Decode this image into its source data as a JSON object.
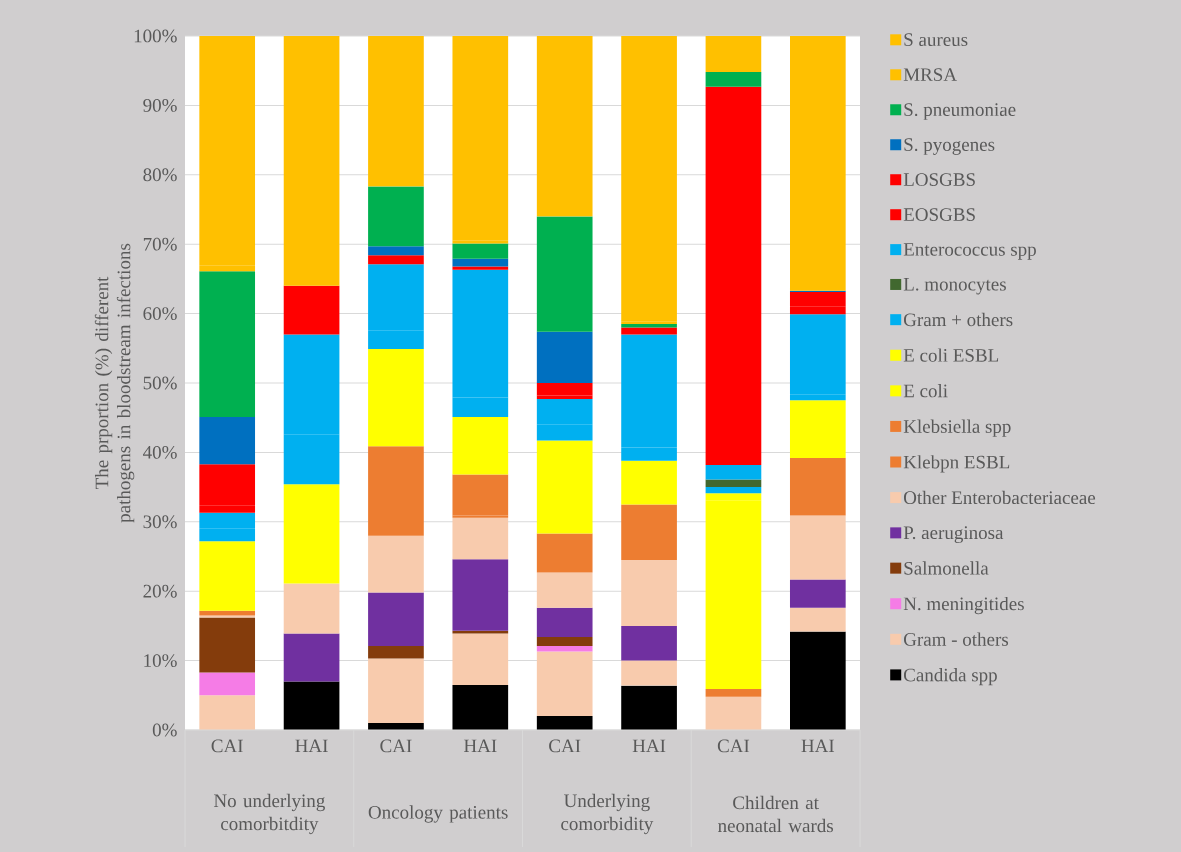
{
  "chart_data": {
    "type": "bar",
    "stacked": true,
    "ylabel": "The prportion (%) different pathogens in bloodstream infections",
    "categories": [
      "CAI",
      "HAI",
      "CAI",
      "HAI",
      "CAI",
      "HAI",
      "CAI",
      "HAI"
    ],
    "annotations": [
      "No underlying comorbitdity",
      "Oncology patients",
      "Underlying comorbidity",
      "Children at neonatal wards"
    ],
    "ylim": [
      0,
      100
    ],
    "yticks": [
      {
        "value": 0,
        "label": "0%"
      },
      {
        "value": 10,
        "label": "10%"
      },
      {
        "value": 20,
        "label": "20%"
      },
      {
        "value": 30,
        "label": "30%"
      },
      {
        "value": 40,
        "label": "40%"
      },
      {
        "value": 50,
        "label": "50%"
      },
      {
        "value": 60,
        "label": "60%"
      },
      {
        "value": 70,
        "label": "70%"
      },
      {
        "value": 80,
        "label": "80%"
      },
      {
        "value": 90,
        "label": "90%"
      },
      {
        "value": 100,
        "label": "100%"
      }
    ],
    "grid": "y",
    "legend": "right",
    "series": [
      {
        "name": "Candida spp",
        "color": "#000000",
        "values": [
          null,
          7.0,
          1.0,
          6.5,
          2.0,
          6.4,
          null,
          14.2
        ]
      },
      {
        "name": "Gram - others",
        "color": "#f8cbad",
        "values": [
          5.0,
          null,
          9.3,
          7.4,
          9.3,
          3.6,
          1.6,
          3.4
        ]
      },
      {
        "name": "N. meningitides",
        "color": "#f57ce6",
        "values": [
          3.3,
          null,
          null,
          null,
          0.8,
          null,
          null,
          null
        ]
      },
      {
        "name": "Salmonella",
        "color": "#843c0c",
        "values": [
          7.9,
          null,
          1.8,
          0.4,
          1.3,
          null,
          null,
          null
        ]
      },
      {
        "name": "P. aeruginosa",
        "color": "#7030a0",
        "values": [
          null,
          6.9,
          7.7,
          10.3,
          4.2,
          5.0,
          null,
          4.1
        ]
      },
      {
        "name": "Other Enterobacteriaceae",
        "color": "#f8cbad",
        "values": [
          0.3,
          7.2,
          8.2,
          6.0,
          5.1,
          9.5,
          3.2,
          9.2
        ]
      },
      {
        "name": "Klebpn ESBL",
        "color": "#ed7d31",
        "values": [
          null,
          null,
          null,
          0.3,
          null,
          null,
          null,
          null
        ]
      },
      {
        "name": "Klebsiella spp",
        "color": "#ed7d31",
        "values": [
          0.7,
          null,
          12.9,
          5.9,
          5.6,
          8.0,
          1.1,
          8.3
        ]
      },
      {
        "name": "E coli",
        "color": "#ffff00",
        "values": [
          10.0,
          14.3,
          14.0,
          8.3,
          13.4,
          6.3,
          27.2,
          8.3
        ]
      },
      {
        "name": "E coli ESBL",
        "color": "#ffff00",
        "values": [
          null,
          null,
          null,
          null,
          null,
          null,
          1.0,
          null
        ]
      },
      {
        "name": "Gram + others",
        "color": "#00b0f0",
        "values": [
          1.8,
          7.2,
          2.7,
          2.8,
          2.3,
          1.9,
          0.9,
          0.8
        ]
      },
      {
        "name": "L. monocytes",
        "color": "#41682f",
        "values": [
          null,
          null,
          null,
          null,
          null,
          null,
          1.1,
          null
        ]
      },
      {
        "name": "Enterococcus spp",
        "color": "#00b0f0",
        "values": [
          2.3,
          14.4,
          9.5,
          18.4,
          3.7,
          16.3,
          2.1,
          11.6
        ]
      },
      {
        "name": "EOSGBS",
        "color": "#ff0000",
        "values": [
          1.1,
          7.0,
          null,
          null,
          0.5,
          null,
          53.3,
          1.1
        ]
      },
      {
        "name": "LOSGBS",
        "color": "#ff0000",
        "values": [
          5.9,
          null,
          1.3,
          0.5,
          1.8,
          1.0,
          1.2,
          2.1
        ]
      },
      {
        "name": "S. pyogenes",
        "color": "#0070c0",
        "values": [
          6.8,
          null,
          1.3,
          1.1,
          7.4,
          null,
          null,
          0.2
        ]
      },
      {
        "name": "S. pneumoniae",
        "color": "#00b050",
        "values": [
          21.0,
          null,
          8.6,
          2.2,
          16.6,
          0.5,
          2.1,
          null
        ]
      },
      {
        "name": "MRSA",
        "color": "#ffc000",
        "values": [
          0.8,
          null,
          null,
          0.4,
          null,
          0.4,
          null,
          0.4
        ]
      },
      {
        "name": "S aureus",
        "color": "#ffc000",
        "values": [
          33.1,
          36.0,
          21.7,
          29.5,
          26.0,
          41.1,
          5.2,
          36.3
        ]
      }
    ]
  }
}
